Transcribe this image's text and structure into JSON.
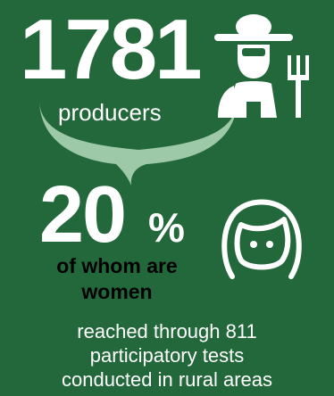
{
  "colors": {
    "background": "#22683a",
    "text": "#ffffff",
    "accent_text": "#000000",
    "curve": "#9ec9a8"
  },
  "producers": {
    "count": "1781",
    "label": "producers",
    "icon": "farmer-icon"
  },
  "women": {
    "percent": "20",
    "percent_sign": "%",
    "line1": "of whom are",
    "line2": "women",
    "icon": "woman-face-icon"
  },
  "caption": {
    "line1": "reached through 811",
    "line2": "participatory tests",
    "line3": "conducted in rural areas"
  }
}
